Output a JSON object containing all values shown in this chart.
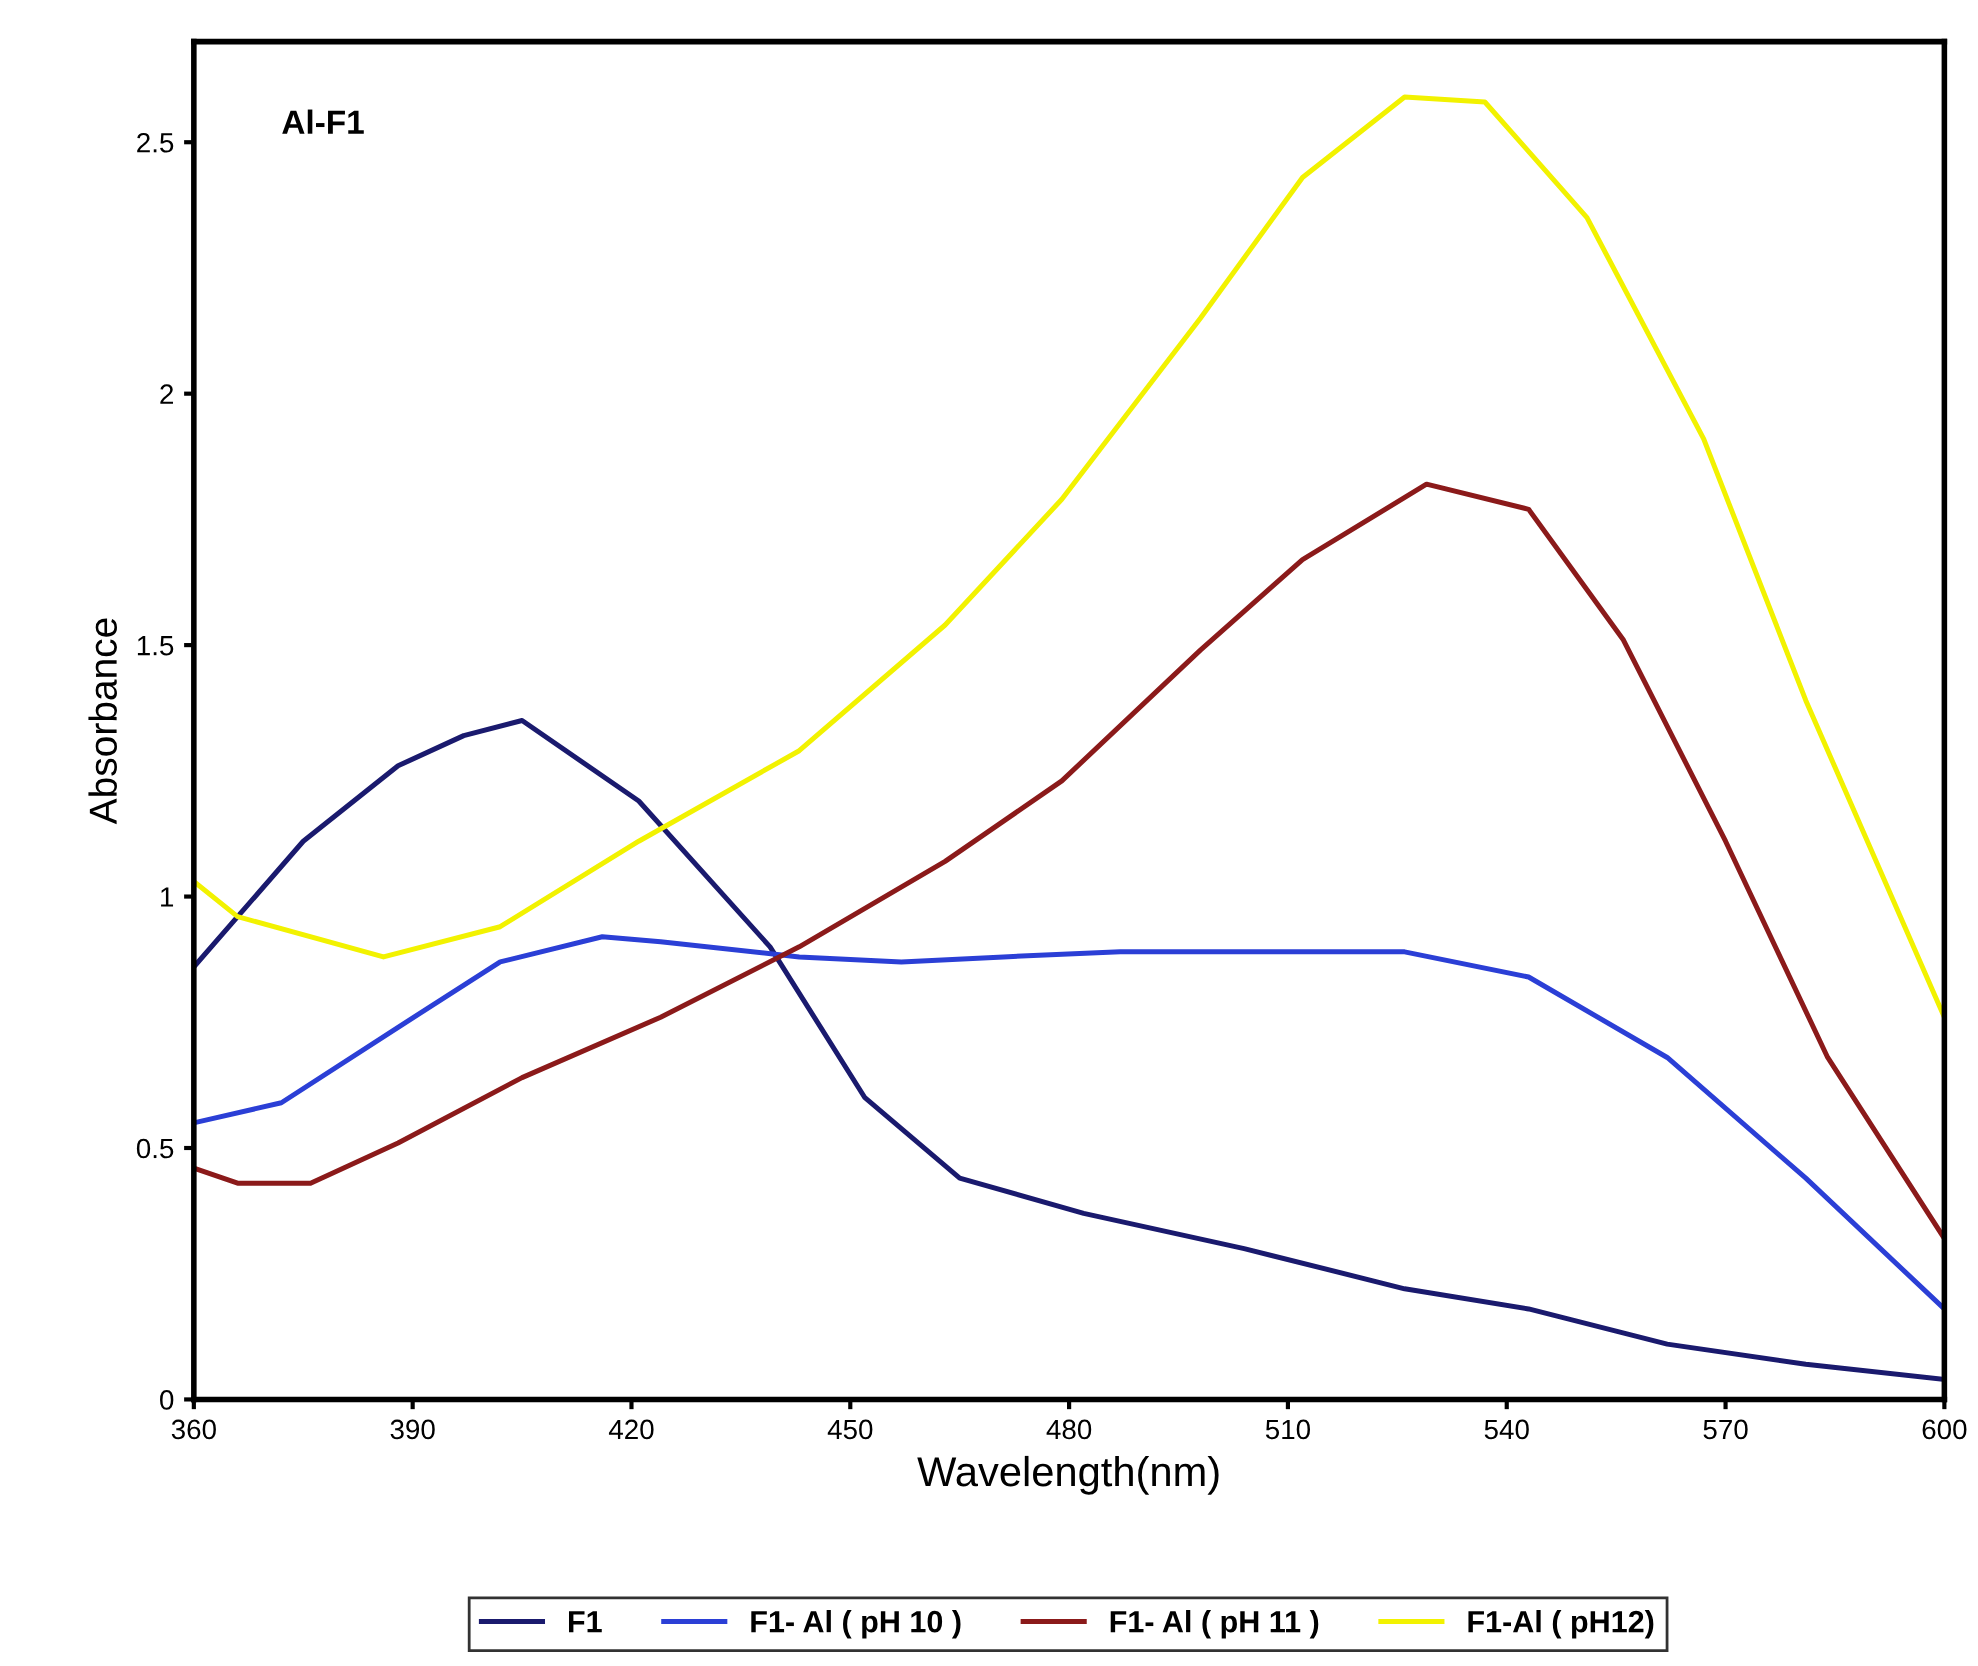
{
  "chart_data": {
    "type": "line",
    "title": "Al-F1",
    "xlabel": "Wavelength(nm)",
    "ylabel": "Absorbance",
    "xlim": [
      360,
      600
    ],
    "xticks": [
      360,
      390,
      420,
      450,
      480,
      510,
      540,
      570,
      600
    ],
    "ylim": [
      0,
      2.7
    ],
    "yticks": [
      0,
      0.5,
      1,
      1.5,
      2,
      2.5
    ],
    "grid": false,
    "legend": "bottom",
    "marker": "none",
    "line_style": "solid",
    "series": [
      {
        "name": "F1",
        "color": "#1a1a6e",
        "x": [
          360,
          375,
          388,
          397,
          405,
          421,
          439,
          452,
          465,
          482,
          504,
          526,
          543,
          562,
          581,
          600
        ],
        "values": [
          0.86,
          1.11,
          1.26,
          1.32,
          1.35,
          1.19,
          0.9,
          0.6,
          0.44,
          0.37,
          0.3,
          0.22,
          0.18,
          0.11,
          0.07,
          0.04
        ]
      },
      {
        "name": "F1- Al ( pH 10 )",
        "color": "#2b3fd6",
        "x": [
          360,
          372,
          388,
          402,
          416,
          424,
          443,
          457,
          471,
          487,
          526,
          543,
          562,
          581,
          600
        ],
        "values": [
          0.55,
          0.59,
          0.74,
          0.87,
          0.92,
          0.91,
          0.88,
          0.87,
          0.88,
          0.89,
          0.89,
          0.84,
          0.68,
          0.44,
          0.18
        ]
      },
      {
        "name": "F1- Al ( pH 11 )",
        "color": "#8b1a1a",
        "x": [
          360,
          366,
          376,
          388,
          405,
          424,
          443,
          463,
          479,
          498,
          512,
          529,
          543,
          556,
          570,
          584,
          600
        ],
        "values": [
          0.46,
          0.43,
          0.43,
          0.51,
          0.64,
          0.76,
          0.9,
          1.07,
          1.23,
          1.49,
          1.67,
          1.82,
          1.77,
          1.51,
          1.11,
          0.68,
          0.32
        ]
      },
      {
        "name": "F1-Al ( pH12)",
        "color": "#f2f200",
        "x": [
          360,
          366,
          386,
          402,
          421,
          443,
          463,
          479,
          498,
          512,
          526,
          537,
          551,
          567,
          581,
          600
        ],
        "values": [
          1.03,
          0.96,
          0.88,
          0.94,
          1.11,
          1.29,
          1.54,
          1.79,
          2.15,
          2.43,
          2.59,
          2.58,
          2.35,
          1.91,
          1.39,
          0.76
        ]
      }
    ]
  }
}
